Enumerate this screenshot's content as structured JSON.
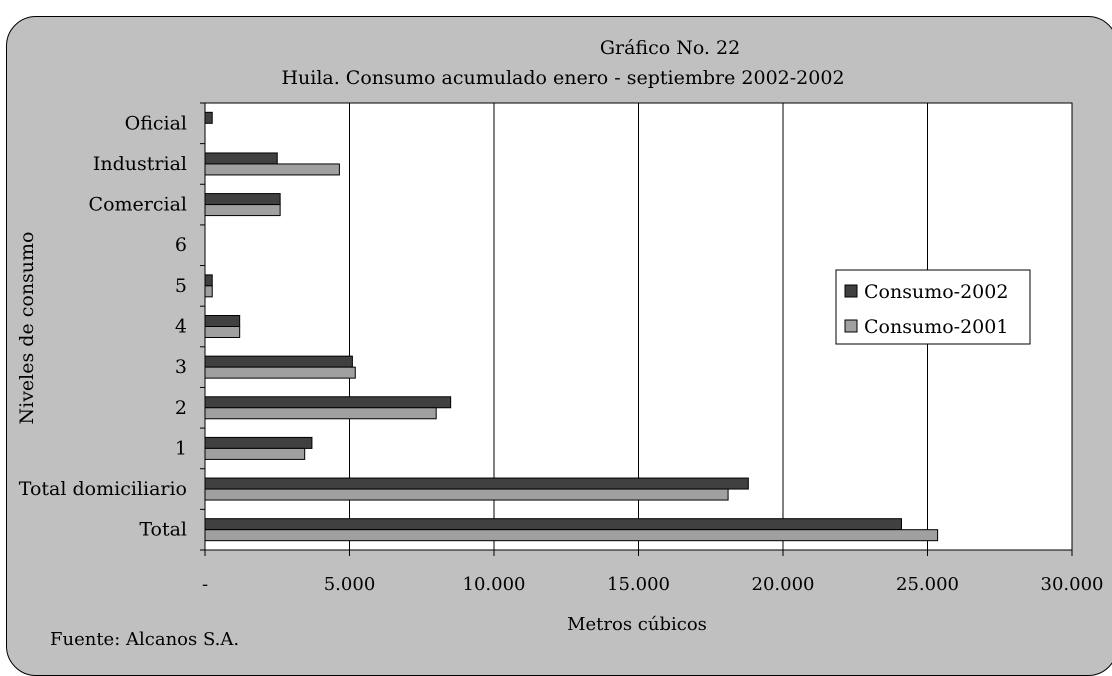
{
  "chart_data": {
    "type": "bar",
    "orientation": "horizontal",
    "title": "Gráfico No. 22",
    "subtitle": "Huila. Consumo acumulado enero - septiembre 2002-2002",
    "xlabel": "Metros cúbicos",
    "ylabel": "Niveles de consumo",
    "categories": [
      "Total",
      "Total domiciliario",
      "1",
      "2",
      "3",
      "4",
      "5",
      "6",
      "Comercial",
      "Industrial",
      "Oficial"
    ],
    "series": [
      {
        "name": "Consumo-2002",
        "color": "#404040",
        "values": [
          24100,
          18800,
          3700,
          8500,
          5100,
          1200,
          250,
          0,
          2600,
          2500,
          250
        ]
      },
      {
        "name": "Consumo-2001",
        "color": "#a0a0a0",
        "values": [
          25350,
          18100,
          3450,
          8000,
          5200,
          1200,
          250,
          0,
          2600,
          4650,
          0
        ]
      }
    ],
    "xlim": [
      0,
      30000
    ],
    "xticks": [
      "-",
      "5.000",
      "10.000",
      "15.000",
      "20.000",
      "25.000",
      "30.000"
    ],
    "grid": true,
    "legend_position": "right",
    "plot_background": "#ffffff",
    "frame_background": "#c0c0c0"
  },
  "source_note": "Fuente: Alcanos S.A."
}
